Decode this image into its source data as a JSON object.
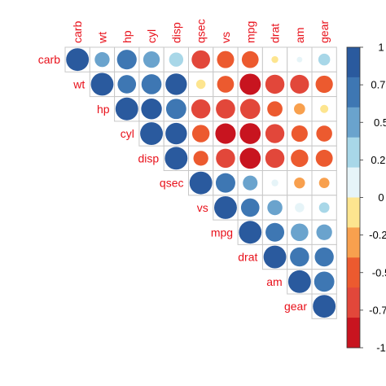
{
  "chart_data": {
    "type": "heatmap",
    "variables": [
      "carb",
      "wt",
      "hp",
      "cyl",
      "disp",
      "qsec",
      "vs",
      "mpg",
      "drat",
      "am",
      "gear"
    ],
    "matrix": [
      [
        1,
        0.43,
        0.75,
        0.53,
        0.39,
        -0.66,
        -0.57,
        -0.55,
        -0.09,
        0.06,
        0.27
      ],
      [
        0.43,
        1,
        0.66,
        0.78,
        0.89,
        -0.17,
        -0.55,
        -0.87,
        -0.71,
        -0.69,
        -0.58
      ],
      [
        0.75,
        0.66,
        1,
        0.83,
        0.79,
        -0.71,
        -0.72,
        -0.78,
        -0.45,
        -0.24,
        -0.13
      ],
      [
        0.53,
        0.78,
        0.83,
        1,
        0.9,
        -0.59,
        -0.81,
        -0.85,
        -0.7,
        -0.52,
        -0.49
      ],
      [
        0.39,
        0.89,
        0.79,
        0.9,
        1,
        -0.43,
        -0.71,
        -0.85,
        -0.71,
        -0.59,
        -0.56
      ],
      [
        -0.66,
        -0.17,
        -0.71,
        -0.59,
        -0.43,
        1,
        0.74,
        0.42,
        0.09,
        -0.23,
        -0.21
      ],
      [
        -0.57,
        -0.55,
        -0.72,
        -0.81,
        -0.71,
        0.74,
        1,
        0.66,
        0.44,
        0.17,
        0.21
      ],
      [
        -0.55,
        -0.87,
        -0.78,
        -0.85,
        -0.85,
        0.42,
        0.66,
        1,
        0.68,
        0.6,
        0.48
      ],
      [
        -0.09,
        -0.71,
        -0.45,
        -0.7,
        -0.71,
        0.09,
        0.44,
        0.68,
        1,
        0.71,
        0.7
      ],
      [
        0.06,
        -0.69,
        -0.24,
        -0.52,
        -0.59,
        -0.23,
        0.17,
        0.6,
        0.71,
        1,
        0.79
      ],
      [
        0.27,
        -0.58,
        -0.13,
        -0.49,
        -0.56,
        -0.21,
        0.21,
        0.48,
        0.7,
        0.79,
        1
      ]
    ],
    "display": "upper triangle, circles sized and colored by value",
    "colorbar": {
      "range": [
        -1,
        1
      ],
      "ticks": [
        "1",
        "0.75",
        "0.5",
        "0.25",
        "0",
        "-0.25",
        "-0.5",
        "-0.75",
        "-1"
      ],
      "bins": [
        "#2a5a9e",
        "#3e77b3",
        "#6aa3cd",
        "#a8d7e8",
        "#e6f4f8",
        "#fde58f",
        "#f8a04e",
        "#ec5a2f",
        "#e2473a",
        "#c8141f"
      ]
    },
    "colors": {
      "label": "#e8101a",
      "grid": "#c8c8c8"
    }
  }
}
